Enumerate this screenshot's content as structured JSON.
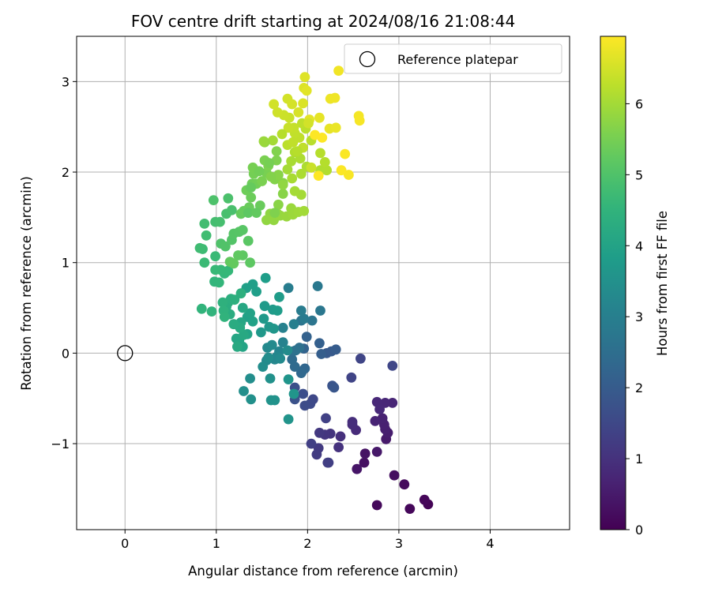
{
  "chart_data": {
    "type": "scatter",
    "title": "FOV centre drift starting at 2024/08/16 21:08:44",
    "xlabel": "Angular distance from reference (arcmin)",
    "ylabel": "Rotation from reference (arcmin)",
    "xlim": [
      -0.53,
      4.87
    ],
    "ylim": [
      -1.95,
      3.5
    ],
    "x_ticks": [
      0,
      1,
      2,
      3,
      4
    ],
    "x_tick_labels": [
      "0",
      "1",
      "2",
      "3",
      "4"
    ],
    "y_ticks": [
      -1,
      0,
      1,
      2,
      3
    ],
    "y_tick_labels": [
      "−1",
      "0",
      "1",
      "2",
      "3"
    ],
    "grid": true,
    "legend": {
      "placement": "top-right",
      "entries": [
        "Reference platepar"
      ]
    },
    "reference_point": {
      "x": 0,
      "y": 0,
      "marker": "open-circle"
    },
    "colorbar": {
      "label": "Hours from first FF file",
      "range": [
        0,
        6.95
      ],
      "ticks": [
        0,
        1,
        2,
        3,
        4,
        5,
        6
      ],
      "tick_labels": [
        "0",
        "1",
        "2",
        "3",
        "4",
        "5",
        "6"
      ],
      "colormap": "viridis"
    },
    "points": [
      [
        3.32,
        -1.67,
        0.05
      ],
      [
        3.28,
        -1.62,
        0.1
      ],
      [
        3.12,
        -1.72,
        0.12
      ],
      [
        2.76,
        -1.68,
        0.15
      ],
      [
        3.06,
        -1.45,
        0.2
      ],
      [
        2.95,
        -1.35,
        0.25
      ],
      [
        2.62,
        -1.21,
        0.3
      ],
      [
        2.63,
        -1.11,
        0.35
      ],
      [
        2.54,
        -1.28,
        0.4
      ],
      [
        2.76,
        -1.09,
        0.45
      ],
      [
        2.86,
        -0.95,
        0.5
      ],
      [
        2.88,
        -0.88,
        0.55
      ],
      [
        2.85,
        -0.84,
        0.6
      ],
      [
        2.84,
        -0.79,
        0.62
      ],
      [
        2.82,
        -0.72,
        0.65
      ],
      [
        2.74,
        -0.75,
        0.7
      ],
      [
        2.93,
        -0.55,
        0.72
      ],
      [
        2.85,
        -0.55,
        0.75
      ],
      [
        2.76,
        -0.54,
        0.78
      ],
      [
        2.79,
        -0.62,
        0.8
      ],
      [
        2.53,
        -0.85,
        0.85
      ],
      [
        2.49,
        -0.79,
        0.88
      ],
      [
        2.49,
        -0.76,
        0.9
      ],
      [
        2.36,
        -0.92,
        0.95
      ],
      [
        2.34,
        -1.04,
        1.0
      ],
      [
        2.25,
        -0.89,
        1.05
      ],
      [
        2.19,
        -0.9,
        1.1
      ],
      [
        2.13,
        -0.88,
        1.15
      ],
      [
        2.12,
        -1.05,
        1.18
      ],
      [
        2.1,
        -1.12,
        1.2
      ],
      [
        2.22,
        -1.21,
        1.25
      ],
      [
        2.23,
        -1.21,
        1.28
      ],
      [
        2.04,
        -1.0,
        1.3
      ],
      [
        2.2,
        -0.72,
        1.35
      ],
      [
        2.48,
        -0.27,
        1.4
      ],
      [
        2.58,
        -0.06,
        1.42
      ],
      [
        2.93,
        -0.14,
        1.45
      ],
      [
        2.06,
        -0.51,
        1.5
      ],
      [
        2.03,
        -0.56,
        1.55
      ],
      [
        1.97,
        -0.58,
        1.6
      ],
      [
        1.95,
        -0.45,
        1.65
      ],
      [
        1.86,
        -0.38,
        1.7
      ],
      [
        1.86,
        -0.51,
        1.75
      ],
      [
        2.27,
        -0.36,
        1.8
      ],
      [
        2.29,
        -0.38,
        1.85
      ],
      [
        2.21,
        0.0,
        1.9
      ],
      [
        2.26,
        0.02,
        1.95
      ],
      [
        2.31,
        0.04,
        2.0
      ],
      [
        2.15,
        -0.01,
        2.05
      ],
      [
        2.13,
        0.11,
        2.1
      ],
      [
        1.99,
        0.18,
        2.15
      ],
      [
        1.96,
        0.05,
        2.2
      ],
      [
        1.94,
        -0.2,
        2.25
      ],
      [
        1.97,
        -0.17,
        2.3
      ],
      [
        1.93,
        -0.22,
        2.35
      ],
      [
        1.86,
        -0.15,
        2.4
      ],
      [
        1.83,
        -0.07,
        2.45
      ],
      [
        1.84,
        0.02,
        2.5
      ],
      [
        1.91,
        0.06,
        2.55
      ],
      [
        1.87,
        0.03,
        2.6
      ],
      [
        1.93,
        0.36,
        2.65
      ],
      [
        2.05,
        0.36,
        2.7
      ],
      [
        2.14,
        0.47,
        2.75
      ],
      [
        2.11,
        0.74,
        2.8
      ],
      [
        1.96,
        0.38,
        2.85
      ],
      [
        1.93,
        0.47,
        2.9
      ],
      [
        1.79,
        0.72,
        2.95
      ],
      [
        1.85,
        0.32,
        3.0
      ],
      [
        1.73,
        0.28,
        3.05
      ],
      [
        1.73,
        0.12,
        3.1
      ],
      [
        1.69,
        0.02,
        3.15
      ],
      [
        1.66,
        -0.04,
        3.2
      ],
      [
        1.64,
        -0.07,
        3.22
      ],
      [
        1.55,
        -0.08,
        3.25
      ],
      [
        1.56,
        0.06,
        3.28
      ],
      [
        1.61,
        0.09,
        3.3
      ],
      [
        1.7,
        -0.06,
        3.32
      ],
      [
        1.78,
        0.03,
        3.35
      ],
      [
        1.57,
        -0.05,
        3.38
      ],
      [
        1.51,
        -0.15,
        3.4
      ],
      [
        1.37,
        -0.28,
        3.42
      ],
      [
        1.3,
        -0.42,
        3.45
      ],
      [
        1.38,
        -0.51,
        3.48
      ],
      [
        1.59,
        -0.28,
        3.5
      ],
      [
        1.64,
        -0.52,
        3.52
      ],
      [
        1.6,
        -0.52,
        3.55
      ],
      [
        1.79,
        -0.73,
        3.58
      ],
      [
        1.85,
        -0.45,
        3.6
      ],
      [
        1.79,
        -0.29,
        3.62
      ],
      [
        1.63,
        0.27,
        3.65
      ],
      [
        1.58,
        0.29,
        3.68
      ],
      [
        1.49,
        0.23,
        3.7
      ],
      [
        1.52,
        0.38,
        3.72
      ],
      [
        1.53,
        0.52,
        3.75
      ],
      [
        1.62,
        0.48,
        3.78
      ],
      [
        1.69,
        0.62,
        3.8
      ],
      [
        1.67,
        0.47,
        3.82
      ],
      [
        1.54,
        0.83,
        3.85
      ],
      [
        1.44,
        0.68,
        3.88
      ],
      [
        1.4,
        0.76,
        3.9
      ],
      [
        1.33,
        0.72,
        3.92
      ],
      [
        1.34,
        0.4,
        3.95
      ],
      [
        1.4,
        0.35,
        3.98
      ],
      [
        1.37,
        0.44,
        4.0
      ],
      [
        1.34,
        0.21,
        4.02
      ],
      [
        1.29,
        0.07,
        4.05
      ],
      [
        1.25,
        0.14,
        4.08
      ],
      [
        1.22,
        0.16,
        4.1
      ],
      [
        1.27,
        0.34,
        4.12
      ],
      [
        1.29,
        0.5,
        4.15
      ],
      [
        1.3,
        0.2,
        4.18
      ],
      [
        1.23,
        0.07,
        4.2
      ],
      [
        1.26,
        0.28,
        4.22
      ],
      [
        1.19,
        0.32,
        4.25
      ],
      [
        1.15,
        0.43,
        4.28
      ],
      [
        1.11,
        0.51,
        4.3
      ],
      [
        1.13,
        0.56,
        4.32
      ],
      [
        1.16,
        0.6,
        4.35
      ],
      [
        1.27,
        0.66,
        4.38
      ],
      [
        1.2,
        0.59,
        4.4
      ],
      [
        1.07,
        0.56,
        4.42
      ],
      [
        1.08,
        0.47,
        4.45
      ],
      [
        1.09,
        0.4,
        4.48
      ],
      [
        0.95,
        0.46,
        4.5
      ],
      [
        0.84,
        0.49,
        4.52
      ],
      [
        0.98,
        0.79,
        4.55
      ],
      [
        1.03,
        0.78,
        4.58
      ],
      [
        1.09,
        0.88,
        4.6
      ],
      [
        1.13,
        0.91,
        4.62
      ],
      [
        1.05,
        0.92,
        4.65
      ],
      [
        0.99,
        0.92,
        4.68
      ],
      [
        0.99,
        1.07,
        4.7
      ],
      [
        0.87,
        1.0,
        4.72
      ],
      [
        0.85,
        1.15,
        4.75
      ],
      [
        0.82,
        1.16,
        4.78
      ],
      [
        0.89,
        1.3,
        4.8
      ],
      [
        0.87,
        1.43,
        4.82
      ],
      [
        0.99,
        1.45,
        4.85
      ],
      [
        1.04,
        1.45,
        4.88
      ],
      [
        1.11,
        1.54,
        4.9
      ],
      [
        1.17,
        1.58,
        4.92
      ],
      [
        1.13,
        1.71,
        4.95
      ],
      [
        0.97,
        1.69,
        4.98
      ],
      [
        1.05,
        1.21,
        5.0
      ],
      [
        1.1,
        1.18,
        5.02
      ],
      [
        1.17,
        1.25,
        5.05
      ],
      [
        1.19,
        1.32,
        5.08
      ],
      [
        1.25,
        1.34,
        5.1
      ],
      [
        1.29,
        1.36,
        5.12
      ],
      [
        1.35,
        1.24,
        5.15
      ],
      [
        1.37,
        1.0,
        5.18
      ],
      [
        1.29,
        1.08,
        5.2
      ],
      [
        1.24,
        1.08,
        5.22
      ],
      [
        1.15,
        1.01,
        5.25
      ],
      [
        1.19,
        0.99,
        5.28
      ],
      [
        1.27,
        1.54,
        5.3
      ],
      [
        1.3,
        1.57,
        5.32
      ],
      [
        1.36,
        1.61,
        5.35
      ],
      [
        1.38,
        1.72,
        5.38
      ],
      [
        1.33,
        1.8,
        5.4
      ],
      [
        1.39,
        1.87,
        5.42
      ],
      [
        1.44,
        1.87,
        5.45
      ],
      [
        1.41,
        1.98,
        5.48
      ],
      [
        1.4,
        2.05,
        5.5
      ],
      [
        1.55,
        1.99,
        5.52
      ],
      [
        1.53,
        2.13,
        5.55
      ],
      [
        1.57,
        2.07,
        5.58
      ],
      [
        1.66,
        2.13,
        5.6
      ],
      [
        1.66,
        2.23,
        5.62
      ],
      [
        1.64,
        1.92,
        5.65
      ],
      [
        1.73,
        1.88,
        5.68
      ],
      [
        1.73,
        1.76,
        5.7
      ],
      [
        1.68,
        1.64,
        5.72
      ],
      [
        1.67,
        1.54,
        5.75
      ],
      [
        1.59,
        1.54,
        5.78
      ],
      [
        1.55,
        1.47,
        5.8
      ],
      [
        1.63,
        1.47,
        5.82
      ],
      [
        1.7,
        1.52,
        5.85
      ],
      [
        1.77,
        1.51,
        5.88
      ],
      [
        1.82,
        1.6,
        5.9
      ],
      [
        1.84,
        1.53,
        5.92
      ],
      [
        1.9,
        1.56,
        5.95
      ],
      [
        1.96,
        1.57,
        5.98
      ],
      [
        1.93,
        1.75,
        6.0
      ],
      [
        1.86,
        1.79,
        6.02
      ],
      [
        1.83,
        1.93,
        6.05
      ],
      [
        1.93,
        1.98,
        6.08
      ],
      [
        1.99,
        2.06,
        6.1
      ],
      [
        2.14,
        2.02,
        6.12
      ],
      [
        2.21,
        2.02,
        6.15
      ],
      [
        2.19,
        2.11,
        6.18
      ],
      [
        2.14,
        2.21,
        6.2
      ],
      [
        2.04,
        2.35,
        6.22
      ],
      [
        1.98,
        2.48,
        6.25
      ],
      [
        1.94,
        2.54,
        6.28
      ],
      [
        1.91,
        2.38,
        6.3
      ],
      [
        1.86,
        2.43,
        6.32
      ],
      [
        1.85,
        2.49,
        6.35
      ],
      [
        1.79,
        2.49,
        6.38
      ],
      [
        1.8,
        2.6,
        6.4
      ],
      [
        1.74,
        2.63,
        6.42
      ],
      [
        1.67,
        2.66,
        6.45
      ],
      [
        1.63,
        2.75,
        6.48
      ],
      [
        1.78,
        2.81,
        6.5
      ],
      [
        1.83,
        2.75,
        6.52
      ],
      [
        1.9,
        2.66,
        6.55
      ],
      [
        1.95,
        2.76,
        6.58
      ],
      [
        1.96,
        2.93,
        6.6
      ],
      [
        1.97,
        3.05,
        6.62
      ],
      [
        1.99,
        2.9,
        6.65
      ],
      [
        2.02,
        2.58,
        6.68
      ],
      [
        2.13,
        2.6,
        6.7
      ],
      [
        2.24,
        2.48,
        6.72
      ],
      [
        2.31,
        2.49,
        6.75
      ],
      [
        2.25,
        2.81,
        6.78
      ],
      [
        2.3,
        2.82,
        6.8
      ],
      [
        2.34,
        3.12,
        6.82
      ],
      [
        2.56,
        2.62,
        6.85
      ],
      [
        2.57,
        2.57,
        6.88
      ],
      [
        2.45,
        1.97,
        6.9
      ],
      [
        2.41,
        2.2,
        6.92
      ],
      [
        2.37,
        2.02,
        6.93
      ],
      [
        2.08,
        2.41,
        6.94
      ],
      [
        2.16,
        2.38,
        6.95
      ],
      [
        2.12,
        1.96,
        6.95
      ],
      [
        1.58,
        2.1,
        5.5
      ],
      [
        1.47,
        2.01,
        5.45
      ],
      [
        1.48,
        1.63,
        5.35
      ],
      [
        1.64,
        1.55,
        5.6
      ],
      [
        1.78,
        2.03,
        6.0
      ],
      [
        1.86,
        2.22,
        6.15
      ],
      [
        1.72,
        2.42,
        6.2
      ],
      [
        1.62,
        2.35,
        6.0
      ],
      [
        1.53,
        2.33,
        5.8
      ],
      [
        1.52,
        2.34,
        5.9
      ],
      [
        1.78,
        2.3,
        6.25
      ],
      [
        1.68,
        1.97,
        5.7
      ],
      [
        1.6,
        1.95,
        5.65
      ],
      [
        1.5,
        1.9,
        5.55
      ],
      [
        1.38,
        1.83,
        5.3
      ],
      [
        1.35,
        1.55,
        5.2
      ],
      [
        1.44,
        1.55,
        5.25
      ],
      [
        1.73,
        1.86,
        5.8
      ],
      [
        1.82,
        2.12,
        6.05
      ],
      [
        1.92,
        2.15,
        6.1
      ],
      [
        1.95,
        2.27,
        6.3
      ],
      [
        2.04,
        2.05,
        6.4
      ],
      [
        1.89,
        2.23,
        6.2
      ],
      [
        2.01,
        2.54,
        6.5
      ],
      [
        1.84,
        2.33,
        6.3
      ]
    ]
  }
}
